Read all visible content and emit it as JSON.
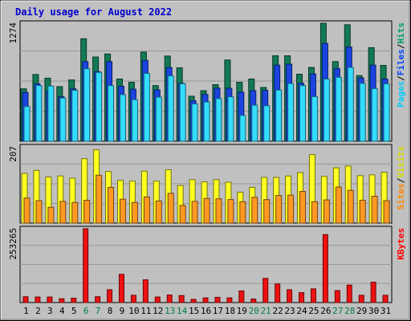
{
  "chart_data": {
    "type": "bar",
    "title": "Daily usage for August 2022",
    "days": [
      "1",
      "2",
      "3",
      "4",
      "5",
      "6",
      "7",
      "8",
      "9",
      "10",
      "11",
      "12",
      "13",
      "14",
      "15",
      "16",
      "17",
      "18",
      "19",
      "20",
      "21",
      "22",
      "23",
      "24",
      "25",
      "26",
      "27",
      "28",
      "29",
      "30",
      "31"
    ],
    "weekend_days": [
      "6",
      "7",
      "13",
      "14",
      "20",
      "21",
      "27",
      "28"
    ],
    "panels": [
      {
        "name": "hits-files-pages",
        "ymax": 1274,
        "ymax_label": "1274",
        "legend": [
          {
            "text": "Pages",
            "color": "#00ccff"
          },
          {
            "text": "/",
            "color": "#000000"
          },
          {
            "text": "Files",
            "color": "#0044ff"
          },
          {
            "text": "/",
            "color": "#000000"
          },
          {
            "text": "Hits",
            "color": "#00a060"
          }
        ],
        "series": [
          {
            "name": "Hits",
            "color": "#117a55",
            "values": [
              566,
              721,
              681,
              590,
              662,
              1107,
              910,
              942,
              672,
              637,
              963,
              601,
              920,
              793,
              486,
              546,
              611,
              877,
              637,
              672,
              581,
              923,
              923,
              724,
              797,
              1274,
              860,
              1258,
              709,
              1010,
              819
            ]
          },
          {
            "name": "Files",
            "color": "#1a44e0",
            "values": [
              527,
              620,
              544,
              480,
              566,
              860,
              752,
              860,
              594,
              562,
              873,
              554,
              796,
              626,
              437,
              505,
              574,
              572,
              530,
              547,
              550,
              822,
              833,
              627,
              727,
              1057,
              785,
              1018,
              683,
              822,
              672
            ]
          },
          {
            "name": "Pages",
            "color": "#33ddff",
            "values": [
              375,
              602,
              596,
              467,
              550,
              783,
              744,
              601,
              503,
              449,
              733,
              476,
              706,
              621,
              403,
              424,
              461,
              480,
              279,
              389,
              383,
              553,
              623,
              601,
              482,
              672,
              691,
              797,
              625,
              569,
              620
            ]
          }
        ]
      },
      {
        "name": "visits-sites",
        "ymax": 207,
        "ymax_label": "207",
        "legend": [
          {
            "text": "Sites",
            "color": "#ff8800"
          },
          {
            "text": "/",
            "color": "#000000"
          },
          {
            "text": "Visits",
            "color": "#dddd00"
          }
        ],
        "series": [
          {
            "name": "Visits",
            "color": "#ffff22",
            "values": [
              135,
              143,
              125,
              128,
              122,
              175,
              199,
              140,
              116,
              114,
              141,
              114,
              145,
              102,
              118,
              112,
              118,
              111,
              84,
              97,
              124,
              124,
              128,
              137,
              186,
              127,
              150,
              155,
              129,
              131,
              138
            ]
          },
          {
            "name": "Sites",
            "color": "#ff9922",
            "values": [
              68,
              61,
              43,
              59,
              56,
              62,
              130,
              97,
              65,
              56,
              71,
              60,
              81,
              48,
              59,
              67,
              66,
              64,
              58,
              70,
              64,
              75,
              76,
              86,
              58,
              63,
              98,
              89,
              62,
              73,
              61
            ]
          }
        ]
      },
      {
        "name": "kbytes",
        "ymax": 253265,
        "ymax_label": "253265",
        "legend": [
          {
            "text": "KBytes",
            "color": "#ff0000"
          }
        ],
        "series": [
          {
            "name": "KBytes",
            "color": "#ee1111",
            "values": [
              20000,
              19000,
              19000,
              13000,
              15000,
              253265,
              20000,
              44000,
              97000,
              25000,
              78000,
              19000,
              26000,
              24000,
              11000,
              16000,
              18000,
              16000,
              40000,
              12000,
              83000,
              64000,
              44000,
              34000,
              47000,
              233000,
              41000,
              60000,
              25000,
              70000,
              25000
            ]
          }
        ]
      }
    ]
  }
}
